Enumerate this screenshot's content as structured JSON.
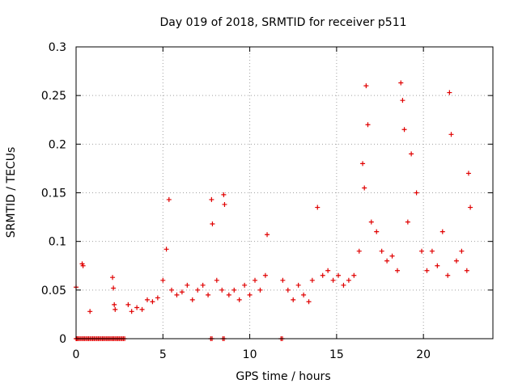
{
  "chart_data": {
    "type": "scatter",
    "title": "Day 019 of 2018, SRMTID for receiver p511",
    "xlabel": "GPS time / hours",
    "ylabel": "SRMTID / TECUs",
    "xlim": [
      0,
      24
    ],
    "ylim": [
      0,
      0.3
    ],
    "x_ticks": [
      0,
      5,
      10,
      15,
      20
    ],
    "y_ticks": [
      0,
      0.05,
      0.1,
      0.15,
      0.2,
      0.25,
      0.3
    ],
    "x_tick_labels": [
      "0",
      "5",
      "10",
      "15",
      "20"
    ],
    "y_tick_labels": [
      "0",
      "0.05",
      "0.1",
      "0.15",
      "0.2",
      "0.25",
      "0.3"
    ],
    "grid": true,
    "marker": "+",
    "marker_color": "#e00000",
    "series": [
      {
        "name": "SRMTID",
        "x": [
          0.0,
          0.05,
          0.35,
          0.4,
          0.8,
          2.1,
          2.15,
          2.2,
          2.25,
          3.0,
          3.2,
          3.5,
          3.8,
          4.1,
          4.4,
          4.7,
          5.0,
          5.2,
          5.35,
          5.5,
          5.8,
          6.1,
          6.4,
          6.7,
          7.0,
          7.3,
          7.6,
          7.8,
          7.85,
          8.1,
          8.4,
          8.5,
          8.55,
          8.8,
          9.1,
          9.4,
          9.7,
          10.0,
          10.3,
          10.6,
          10.9,
          11.0,
          11.9,
          12.2,
          12.5,
          12.8,
          13.1,
          13.4,
          13.6,
          13.9,
          14.2,
          14.5,
          14.8,
          15.1,
          15.4,
          15.7,
          16.0,
          16.3,
          16.5,
          16.6,
          16.7,
          16.8,
          17.0,
          17.3,
          17.6,
          17.9,
          18.2,
          18.5,
          18.7,
          18.8,
          18.9,
          19.1,
          19.3,
          19.6,
          19.9,
          20.2,
          20.5,
          20.8,
          21.1,
          21.4,
          21.5,
          21.6,
          21.9,
          22.2,
          22.5,
          22.6,
          22.7
        ],
        "values": [
          0.053,
          0.0,
          0.077,
          0.075,
          0.028,
          0.063,
          0.052,
          0.035,
          0.03,
          0.035,
          0.028,
          0.032,
          0.03,
          0.04,
          0.038,
          0.042,
          0.06,
          0.092,
          0.143,
          0.05,
          0.045,
          0.048,
          0.055,
          0.04,
          0.05,
          0.055,
          0.045,
          0.143,
          0.118,
          0.06,
          0.05,
          0.148,
          0.138,
          0.045,
          0.05,
          0.04,
          0.055,
          0.045,
          0.06,
          0.05,
          0.065,
          0.107,
          0.06,
          0.05,
          0.04,
          0.055,
          0.045,
          0.038,
          0.06,
          0.135,
          0.065,
          0.07,
          0.06,
          0.065,
          0.055,
          0.06,
          0.065,
          0.09,
          0.18,
          0.155,
          0.26,
          0.22,
          0.12,
          0.11,
          0.09,
          0.08,
          0.085,
          0.07,
          0.263,
          0.245,
          0.215,
          0.12,
          0.19,
          0.15,
          0.09,
          0.07,
          0.09,
          0.075,
          0.11,
          0.065,
          0.253,
          0.21,
          0.08,
          0.09,
          0.07,
          0.17,
          0.135
        ]
      }
    ],
    "zero_segments": [
      [
        0.0,
        2.85
      ],
      [
        7.75,
        7.85
      ],
      [
        8.45,
        8.55
      ],
      [
        11.8,
        11.9
      ]
    ]
  }
}
